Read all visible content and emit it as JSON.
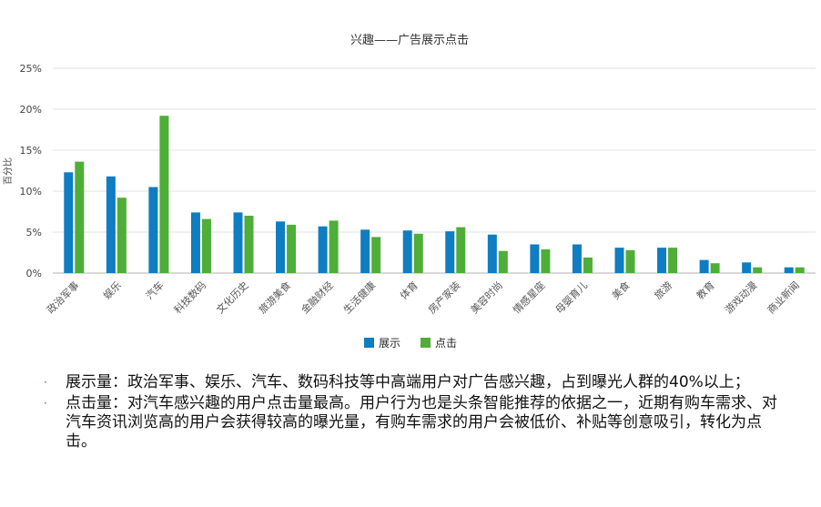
{
  "chart_data": {
    "type": "bar",
    "title": "兴趣——广告展示点击",
    "ylabel": "百分比",
    "xlabel": "",
    "ylim": [
      0,
      25
    ],
    "yticks": [
      "0%",
      "5%",
      "10%",
      "15%",
      "20%",
      "25%"
    ],
    "grid": true,
    "legend_position": "bottom",
    "categories": [
      "政治军事",
      "娱乐",
      "汽车",
      "科技数码",
      "文化历史",
      "旅游美食",
      "金融财经",
      "生活健康",
      "体育",
      "房产家装",
      "美容时尚",
      "情感星座",
      "母婴育儿",
      "美食",
      "旅游",
      "教育",
      "游戏动漫",
      "商业新闻"
    ],
    "series": [
      {
        "name": "展示",
        "color": "#0e7dc2",
        "values": [
          12.3,
          11.8,
          10.5,
          7.4,
          7.4,
          6.3,
          5.7,
          5.3,
          5.2,
          5.1,
          4.7,
          3.5,
          3.5,
          3.1,
          3.1,
          1.6,
          1.3,
          0.7
        ]
      },
      {
        "name": "点击",
        "color": "#4fae37",
        "values": [
          13.6,
          9.2,
          19.2,
          6.6,
          7.0,
          5.9,
          6.4,
          4.4,
          4.8,
          5.6,
          2.7,
          2.9,
          1.9,
          2.8,
          3.1,
          1.2,
          0.7,
          0.7
        ]
      }
    ]
  },
  "notes": [
    "展示量：政治军事、娱乐、汽车、数码科技等中高端用户对广告感兴趣，占到曝光人群的40%以上；",
    "点击量：对汽车感兴趣的用户点击量最高。用户行为也是头条智能推荐的依据之一，近期有购车需求、对汽车资讯浏览高的用户会获得较高的曝光量，有购车需求的用户会被低价、补贴等创意吸引，转化为点击。"
  ],
  "bullet_glyph": "·"
}
